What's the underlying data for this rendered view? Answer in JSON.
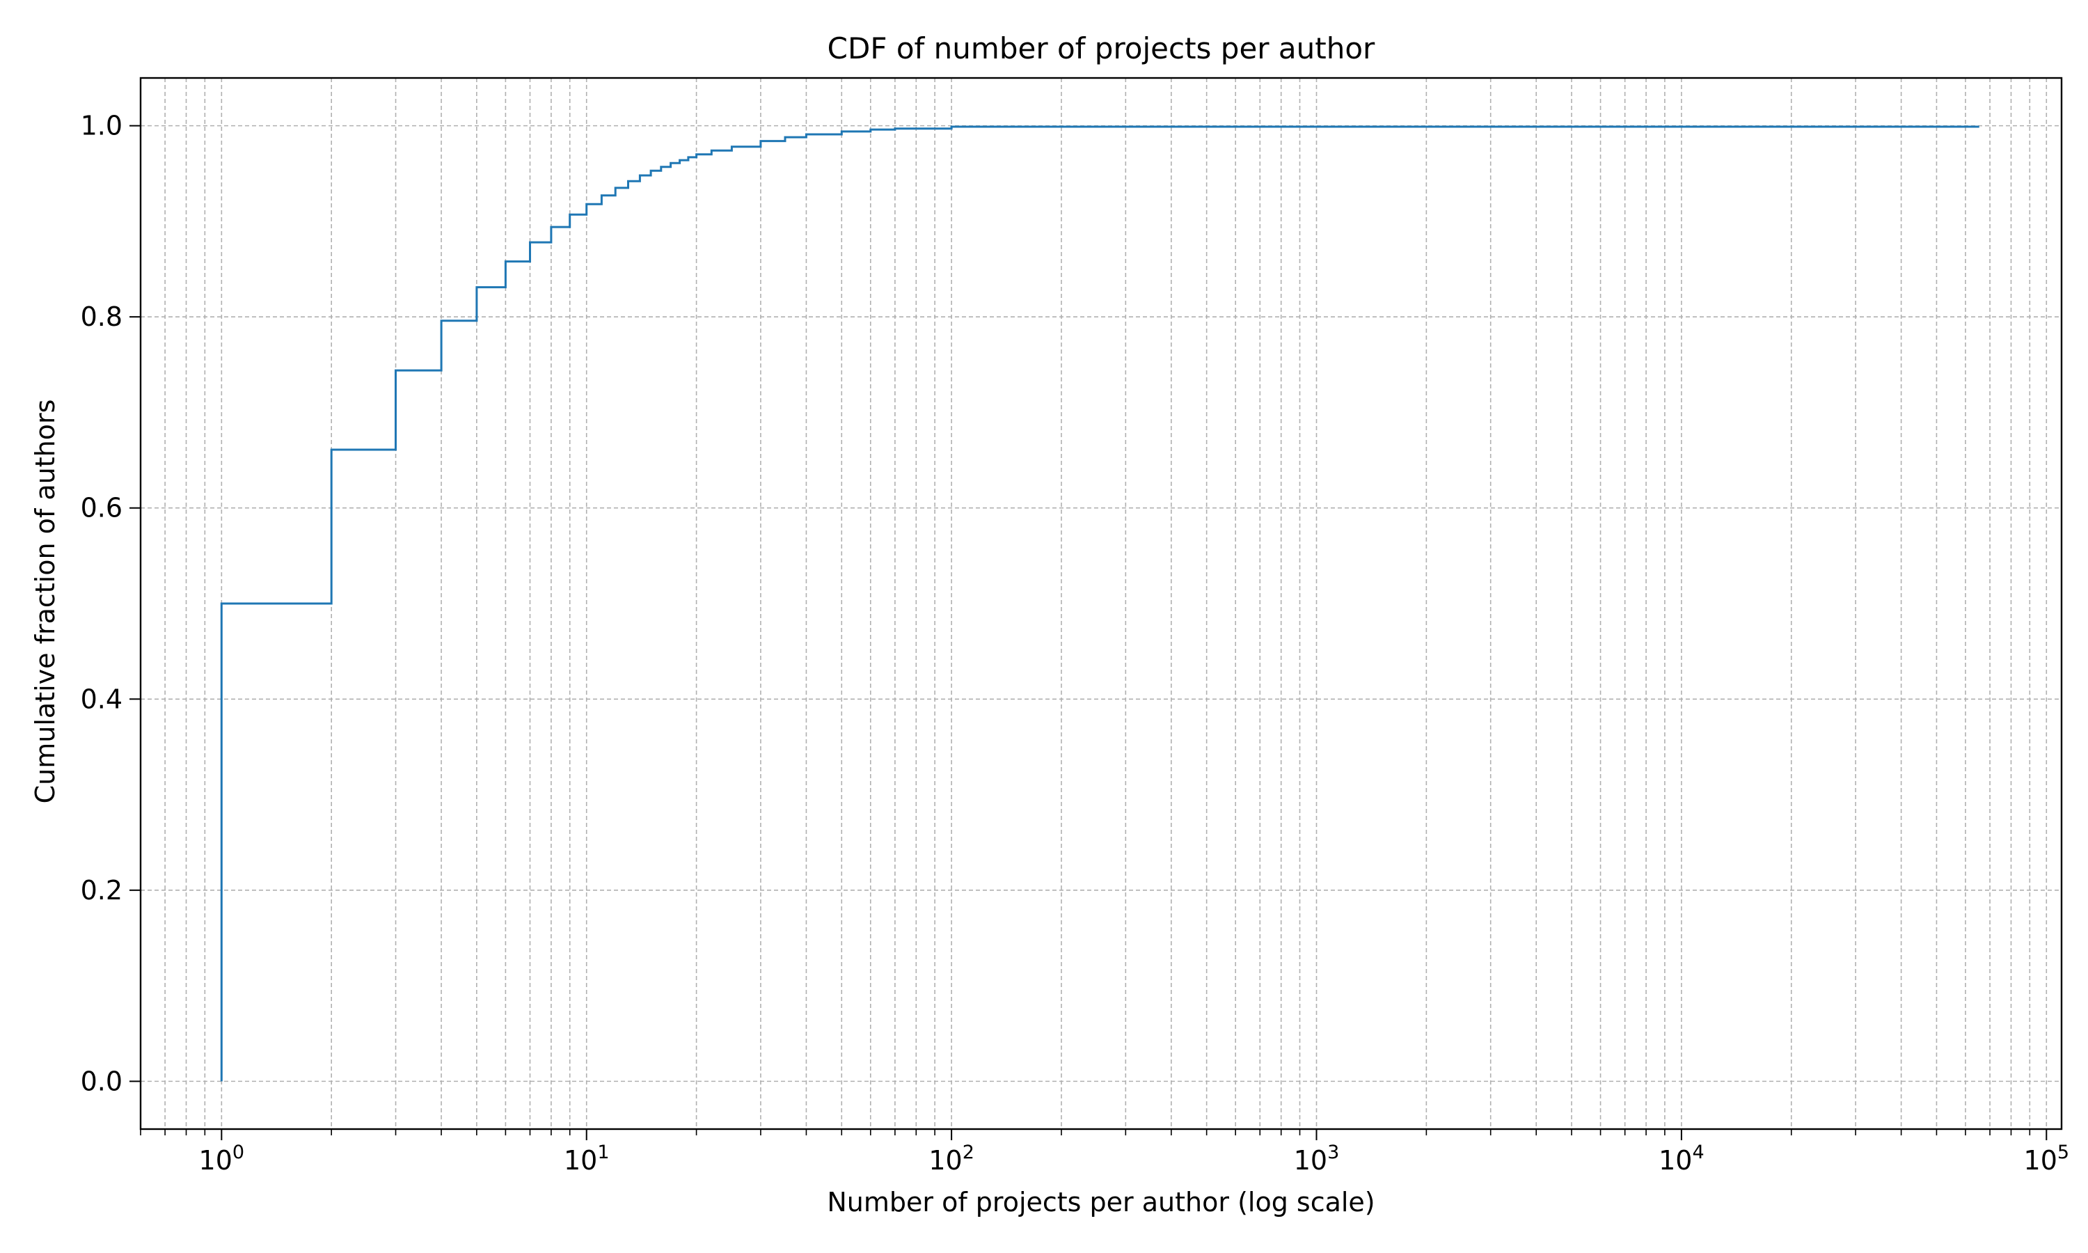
{
  "chart_data": {
    "type": "line",
    "drawstyle": "steps-post",
    "title": "CDF of number of projects per author",
    "xlabel": "Number of projects per author (log scale)",
    "ylabel": "Cumulative fraction of authors",
    "xscale": "log",
    "xlim": [
      0.6,
      110000
    ],
    "ylim": [
      -0.05,
      1.05
    ],
    "x_ticks": [
      {
        "value": 1,
        "base": "10",
        "exp": "0"
      },
      {
        "value": 10,
        "base": "10",
        "exp": "1"
      },
      {
        "value": 100,
        "base": "10",
        "exp": "2"
      },
      {
        "value": 1000,
        "base": "10",
        "exp": "3"
      },
      {
        "value": 10000,
        "base": "10",
        "exp": "4"
      },
      {
        "value": 100000,
        "base": "10",
        "exp": "5"
      }
    ],
    "y_ticks": [
      {
        "value": 0.0,
        "label": "0.0"
      },
      {
        "value": 0.2,
        "label": "0.2"
      },
      {
        "value": 0.4,
        "label": "0.4"
      },
      {
        "value": 0.6,
        "label": "0.6"
      },
      {
        "value": 0.8,
        "label": "0.8"
      },
      {
        "value": 1.0,
        "label": "1.0"
      }
    ],
    "grid": true,
    "grid_minor": true,
    "series": [
      {
        "color": "#1f77b4",
        "x": [
          1,
          1,
          2,
          3,
          4,
          5,
          6,
          7,
          8,
          9,
          10,
          11,
          12,
          13,
          14,
          15,
          16,
          17,
          18,
          19,
          20,
          22,
          25,
          30,
          35,
          40,
          50,
          60,
          70,
          100,
          65000
        ],
        "y": [
          0.0,
          0.5,
          0.661,
          0.744,
          0.796,
          0.831,
          0.858,
          0.878,
          0.894,
          0.907,
          0.918,
          0.927,
          0.935,
          0.942,
          0.948,
          0.953,
          0.957,
          0.961,
          0.964,
          0.967,
          0.97,
          0.974,
          0.978,
          0.984,
          0.988,
          0.991,
          0.994,
          0.996,
          0.997,
          0.999,
          1.0
        ]
      }
    ]
  }
}
